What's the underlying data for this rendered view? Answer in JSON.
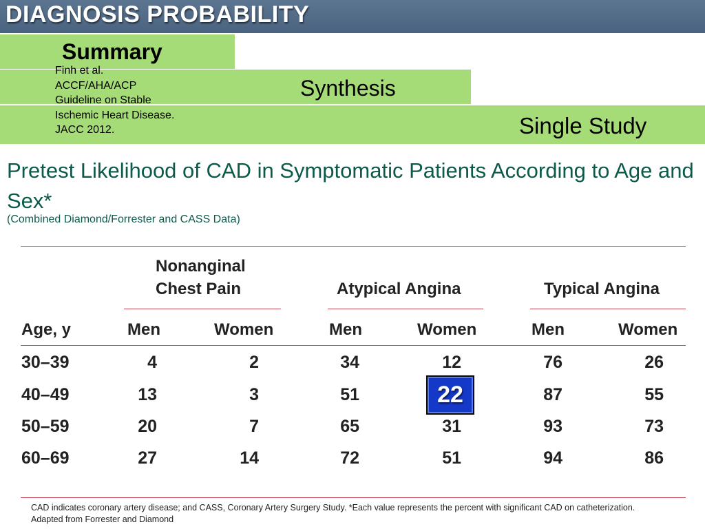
{
  "header": {
    "title": "DIAGNOSIS PROBABILITY"
  },
  "levels": {
    "summary": "Summary",
    "synthesis": "Synthesis",
    "single_study": "Single Study"
  },
  "citation": {
    "lines": [
      "Finh et al.",
      "ACCF/AHA/ACP",
      "Guideline on Stable",
      "Ischemic Heart Disease.",
      "JACC 2012."
    ]
  },
  "title": "Pretest Likelihood of CAD in Symptomatic Patients According to Age and Sex*",
  "subtitle": "(Combined Diamond/Forrester and CASS Data)",
  "table": {
    "groups": [
      {
        "lines": [
          "Nonanginal",
          "Chest Pain"
        ]
      },
      {
        "lines": [
          "Atypical Angina"
        ]
      },
      {
        "lines": [
          "Typical Angina"
        ]
      }
    ],
    "columns": [
      "Age, y",
      "Men",
      "Women",
      "Men",
      "Women",
      "Men",
      "Women"
    ],
    "rows": [
      [
        "30–39",
        "4",
        "2",
        "34",
        "12",
        "76",
        "26"
      ],
      [
        "40–49",
        "13",
        "3",
        "51",
        "22",
        "87",
        "55"
      ],
      [
        "50–59",
        "20",
        "7",
        "65",
        "31",
        "93",
        "73"
      ],
      [
        "60–69",
        "27",
        "14",
        "72",
        "51",
        "94",
        "86"
      ]
    ],
    "highlight": "22"
  },
  "footnote": {
    "line1": "CAD indicates coronary artery disease; and CASS, Coronary Artery Surgery Study. *Each value represents the percent with significant CAD on catheterization.",
    "line2": "Adapted from Forrester and Diamond"
  },
  "colors": {
    "header_bg": "#4a6380",
    "band_green": "#a6dc78",
    "title_teal": "#0b5a4a",
    "rule_red": "#c24a55",
    "highlight_blue": "#1438c8"
  }
}
